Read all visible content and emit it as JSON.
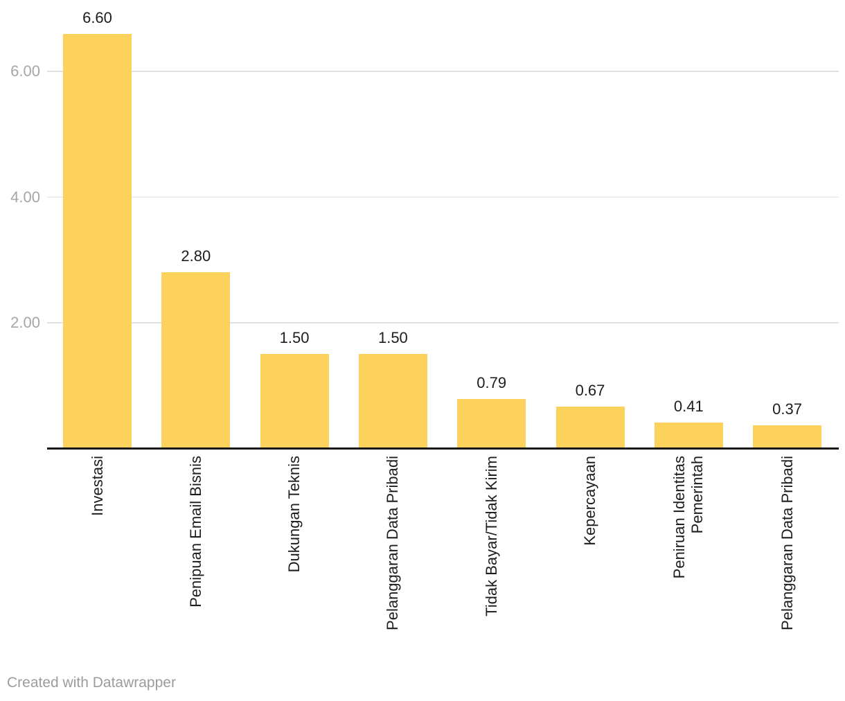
{
  "chart_data": {
    "type": "bar",
    "title": "",
    "xlabel": "",
    "ylabel": "",
    "categories": [
      "Investasi",
      "Penipuan Email Bisnis",
      "Dukungan Teknis",
      "Pelanggaran Data Pribadi",
      "Tidak Bayar/Tidak Kirim",
      "Kepercayaan",
      "Peniruan Identitas\nPemerintah",
      "Pelanggaran Data Pribadi"
    ],
    "values": [
      6.6,
      2.8,
      1.5,
      1.5,
      0.79,
      0.67,
      0.41,
      0.37
    ],
    "value_labels": [
      "6.60",
      "2.80",
      "1.50",
      "1.50",
      "0.79",
      "0.67",
      "0.41",
      "0.37"
    ],
    "y_axis": {
      "ticks": [
        {
          "value": 2,
          "label": "2.00"
        },
        {
          "value": 4,
          "label": "4.00"
        },
        {
          "value": 6,
          "label": "6.00"
        }
      ],
      "range": [
        0,
        6.9
      ],
      "grid": true
    },
    "legend": "none",
    "colors": {
      "bar": "#FDD25C",
      "grid": "#E1E1E1",
      "axis": "#161616",
      "tick_label": "#A6A6A6",
      "value_label": "#1D1D1D",
      "category_label": "#1D1D1D",
      "credit": "#9C9C9C"
    }
  },
  "footer": {
    "credit": "Created with Datawrapper"
  }
}
